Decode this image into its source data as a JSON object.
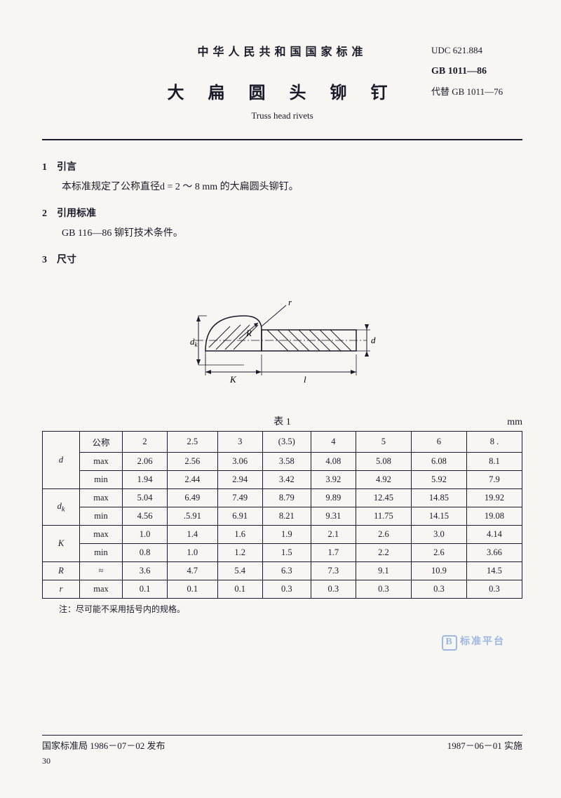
{
  "header": {
    "org": "中华人民共和国国家标准",
    "title_cn": "大 扁 圆 头 铆 钉",
    "title_en": "Truss head rivets",
    "udc": "UDC 621.884",
    "gb": "GB 1011—86",
    "replaces": "代替 GB 1011—76"
  },
  "sections": {
    "s1_head": "1　引言",
    "s1_body": "本标准规定了公称直径d = 2 ～ 8 mm 的大扁圆头铆钉。",
    "s2_head": "2　引用标准",
    "s2_body": "GB 116—86 铆钉技术条件。",
    "s3_head": "3　尺寸"
  },
  "diagram": {
    "labels": {
      "r": "r",
      "R": "R",
      "dk": "d",
      "dk_sub": "k",
      "d": "d",
      "K": "K",
      "l": "l"
    },
    "stroke": "#1a1a2a",
    "hatch": "#1a1a2a"
  },
  "table": {
    "caption": "表 1",
    "unit": "mm",
    "columns": [
      "2",
      "2.5",
      "3",
      "(3.5)",
      "4",
      "5",
      "6",
      "8"
    ],
    "rows": [
      {
        "param": "d",
        "sub": "公称",
        "vals": [
          "2",
          "2.5",
          "3",
          "(3.5)",
          "4",
          "5",
          "6",
          "8 ."
        ],
        "span": 3,
        "first": true
      },
      {
        "param": "",
        "sub": "max",
        "vals": [
          "2.06",
          "2.56",
          "3.06",
          "3.58",
          "4.08",
          "5.08",
          "6.08",
          "8.1"
        ]
      },
      {
        "param": "",
        "sub": "min",
        "vals": [
          "1.94",
          "2.44",
          "2.94",
          "3.42",
          "3.92",
          "4.92",
          "5.92",
          "7.9"
        ]
      },
      {
        "param": "dₖ",
        "sub": "max",
        "vals": [
          "5.04",
          "6.49",
          "7.49",
          "8.79",
          "9.89",
          "12.45",
          "14.85",
          "19.92"
        ],
        "span": 2,
        "first": true
      },
      {
        "param": "",
        "sub": "min",
        "vals": [
          "4.56",
          ".5.91",
          "6.91",
          "8.21",
          "9.31",
          "11.75",
          "14.15",
          "19.08"
        ]
      },
      {
        "param": "K",
        "sub": "max",
        "vals": [
          "1.0",
          "1.4",
          "1.6",
          "1.9",
          "2.1",
          "2.6",
          "3.0",
          "4.14"
        ],
        "span": 2,
        "first": true
      },
      {
        "param": "",
        "sub": "min",
        "vals": [
          "0.8",
          "1.0",
          "1.2",
          "1.5",
          "1.7",
          "2.2",
          "2.6",
          "3.66"
        ]
      },
      {
        "param": "R",
        "sub": "≈",
        "vals": [
          "3.6",
          "4.7",
          "5.4",
          "6.3",
          "7.3",
          "9.1",
          "10.9",
          "14.5"
        ],
        "span": 1,
        "first": true
      },
      {
        "param": "r",
        "sub": "max",
        "vals": [
          "0.1",
          "0.1",
          "0.1",
          "0.3",
          "0.3",
          "0.3",
          "0.3",
          "0.3"
        ],
        "span": 1,
        "first": true
      }
    ],
    "note": "注：尽可能不采用括号内的规格。"
  },
  "footer": {
    "issued": "国家标准局 1986－07－02 发布",
    "effective": "1987－06－01 实施",
    "page": "30"
  },
  "watermark": {
    "logo": "B",
    "text": "标准平台"
  }
}
